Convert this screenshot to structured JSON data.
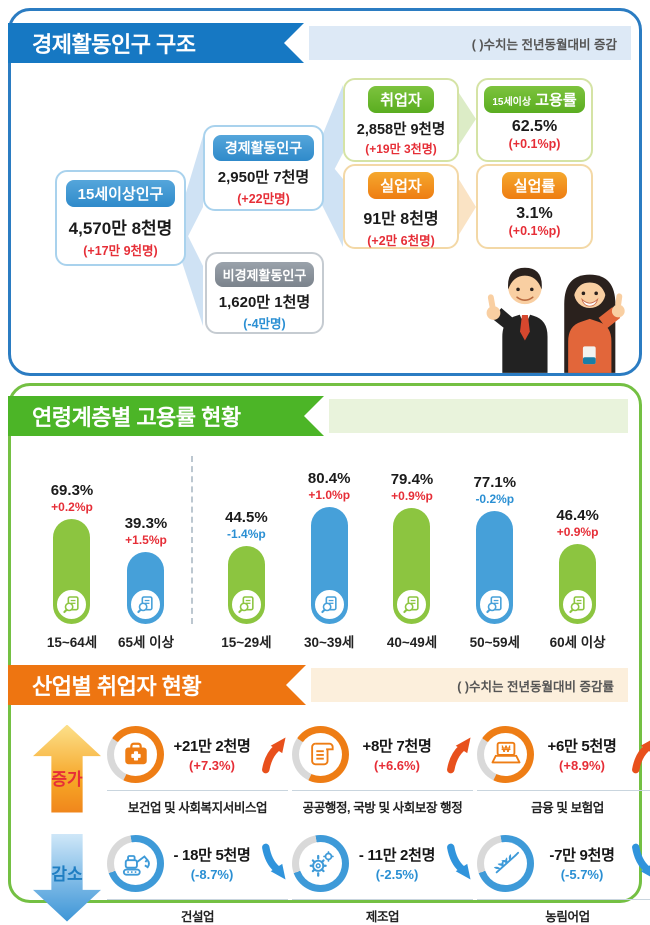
{
  "colors": {
    "accent_blue": "#1678c3",
    "accent_green": "#4cb527",
    "accent_orange": "#ee7511",
    "positive_red": "#e62e37",
    "negative_blue": "#2a8fd3",
    "bar_green": "#8cc540",
    "bar_blue": "#46a0d9",
    "ring_gray": "#d9d9d9"
  },
  "section1": {
    "title": "경제활동인구 구조",
    "note": "( )수치는 전년동월대비 증감",
    "flow": {
      "pop15": {
        "label": "15세이상인구",
        "value": "4,570만 8천명",
        "change": "(+17만 9천명)"
      },
      "econ_active": {
        "label": "경제활동인구",
        "value": "2,950만 7천명",
        "change": "(+22만명)"
      },
      "econ_inactive": {
        "label": "비경제활동인구",
        "value": "1,620만 1천명",
        "change": "(-4만명)"
      },
      "employed": {
        "label": "취업자",
        "value": "2,858만 9천명",
        "change": "(+19만 3천명)"
      },
      "emp_rate": {
        "label_prefix": "15세이상",
        "label": "고용률",
        "value": "62.5%",
        "change": "(+0.1%p)"
      },
      "unemployed": {
        "label": "실업자",
        "value": "91만 8천명",
        "change": "(+2만 6천명)"
      },
      "unemp_rate": {
        "label": "실업률",
        "value": "3.1%",
        "change": "(+0.1%p)"
      }
    }
  },
  "section2": {
    "title": "연령계층별 고용률 현황"
  },
  "chart_data": {
    "type": "bar",
    "title": "연령계층별 고용률 현황",
    "categories": [
      "15~64세",
      "65세 이상",
      "15~29세",
      "30~39세",
      "40~49세",
      "50~59세",
      "60세 이상"
    ],
    "values": [
      69.3,
      39.3,
      44.5,
      80.4,
      79.4,
      77.1,
      46.4
    ],
    "changes": [
      "+0.2%p",
      "+1.5%p",
      "-1.4%p",
      "+1.0%p",
      "+0.9%p",
      "-0.2%p",
      "+0.9%p"
    ],
    "bar_colors": [
      "green",
      "blue",
      "green",
      "blue",
      "green",
      "blue",
      "green"
    ],
    "unit": "%",
    "ylim": [
      0,
      100
    ],
    "layout": {
      "divider_after_index": 1,
      "grid": false,
      "value_labels": "above-bar",
      "legend": false
    }
  },
  "section3": {
    "title": "산업별 취업자 현황",
    "note": "( )수치는 전년동월대비 증감률",
    "increase_label": "증가",
    "decrease_label": "감소",
    "increase": [
      {
        "industry": "보건업 및 사회복지서비스업",
        "value": "+21만 2천명",
        "rate": "(+7.3%)",
        "icon": "medical-bag-icon"
      },
      {
        "industry": "공공행정, 국방 및 사회보장 행정",
        "value": "+8만 7천명",
        "rate": "(+6.6%)",
        "icon": "scroll-icon"
      },
      {
        "industry": "금융 및 보험업",
        "value": "+6만 5천명",
        "rate": "(+8.9%)",
        "icon": "laptop-won-icon"
      }
    ],
    "decrease": [
      {
        "industry": "건설업",
        "value": "- 18만 5천명",
        "rate": "(-8.7%)",
        "icon": "excavator-icon"
      },
      {
        "industry": "제조업",
        "value": "- 11만 2천명",
        "rate": "(-2.5%)",
        "icon": "gears-icon"
      },
      {
        "industry": "농림어업",
        "value": "-7만 9천명",
        "rate": "(-5.7%)",
        "icon": "wheat-icon"
      }
    ]
  }
}
